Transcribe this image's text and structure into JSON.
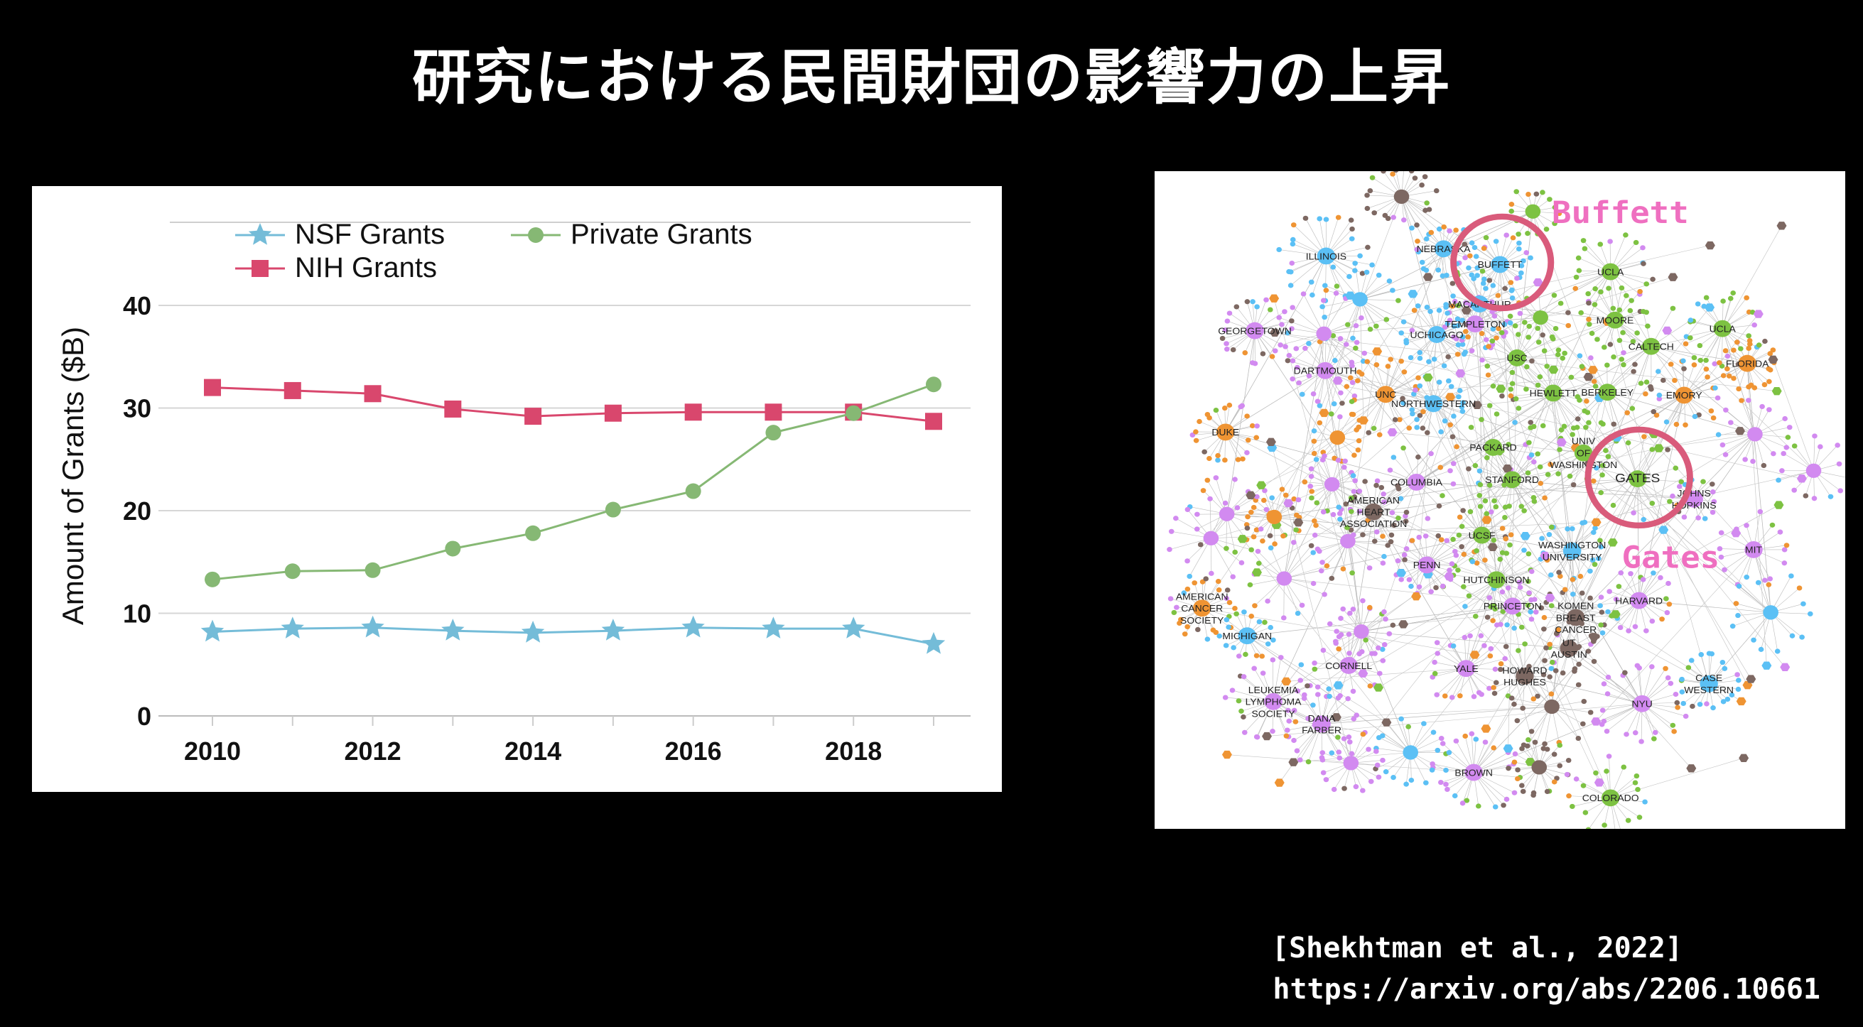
{
  "title": "研究における民間財団の影響力の上昇",
  "chart_data": {
    "type": "line",
    "title": "",
    "xlabel": "",
    "ylabel": "Amount of Grants ($B)",
    "x": [
      2010,
      2011,
      2012,
      2013,
      2014,
      2015,
      2016,
      2017,
      2018,
      2019
    ],
    "xticks": [
      "2010",
      "2012",
      "2014",
      "2016",
      "2018"
    ],
    "yticks": [
      "0",
      "10",
      "20",
      "30",
      "40"
    ],
    "ylim": [
      0,
      40
    ],
    "grid": true,
    "legend_position": "top-left",
    "series": [
      {
        "name": "NSF Grants",
        "marker": "star",
        "color": "#74bcd8",
        "values": [
          8.2,
          8.5,
          8.6,
          8.3,
          8.1,
          8.3,
          8.6,
          8.5,
          8.5,
          7.0
        ]
      },
      {
        "name": "NIH Grants",
        "marker": "square",
        "color": "#d9476d",
        "values": [
          32.0,
          31.7,
          31.4,
          29.9,
          29.2,
          29.5,
          29.6,
          29.6,
          29.6,
          28.7
        ]
      },
      {
        "name": "Private Grants",
        "marker": "circle",
        "color": "#86b874",
        "values": [
          13.3,
          14.1,
          14.2,
          16.3,
          17.8,
          20.1,
          21.9,
          27.6,
          29.5,
          32.3
        ]
      }
    ]
  },
  "network": {
    "labels": [
      "ILLINOIS",
      "NEBRASKA",
      "BUFFETT",
      "UCLA",
      "GEORGETOWN",
      "UCHICAGO",
      "TEMPLETON",
      "MACARTHUR",
      "MOORE",
      "UCLA",
      "CALTECH",
      "FLORIDA",
      "DARTMOUTH",
      "USC",
      "UNC",
      "NORTHWESTERN",
      "HEWLETT",
      "BERKELEY",
      "EMORY",
      "DUKE",
      "PACKARD",
      "UNIV OF WASHINGTON",
      "STANFORD",
      "GATES",
      "COLUMBIA",
      "AMERICAN HEART ASSOCIATION",
      "JOHNS HOPKINS",
      "UCSF",
      "WASHINGTON UNIVERSITY",
      "MIT",
      "PENN",
      "HUTCHINSON",
      "PRINCETON",
      "HARVARD",
      "KOMEN BREAST CANCER",
      "AMERICAN CANCER SOCIETY",
      "MICHIGAN",
      "UT AUSTIN",
      "CORNELL",
      "YALE",
      "HOWARD HUGHES",
      "CASE WESTERN",
      "NYU",
      "LEUKEMIA LYMPHOMA SOCIETY",
      "DANA FARBER",
      "BROWN",
      "COLORADO"
    ],
    "annotations": {
      "buffett": "Buffett",
      "gates": "Gates"
    },
    "colors": {
      "blue": "#5bc0f5",
      "green": "#7dc242",
      "purple": "#d28af0",
      "orange": "#ef9433",
      "brown": "#7d6862",
      "highlight": "#d95b7b",
      "annotation": "#ef6fc0"
    }
  },
  "citation": {
    "ref": "[Shekhtman et al., 2022]",
    "url": "https://arxiv.org/abs/2206.10661"
  }
}
